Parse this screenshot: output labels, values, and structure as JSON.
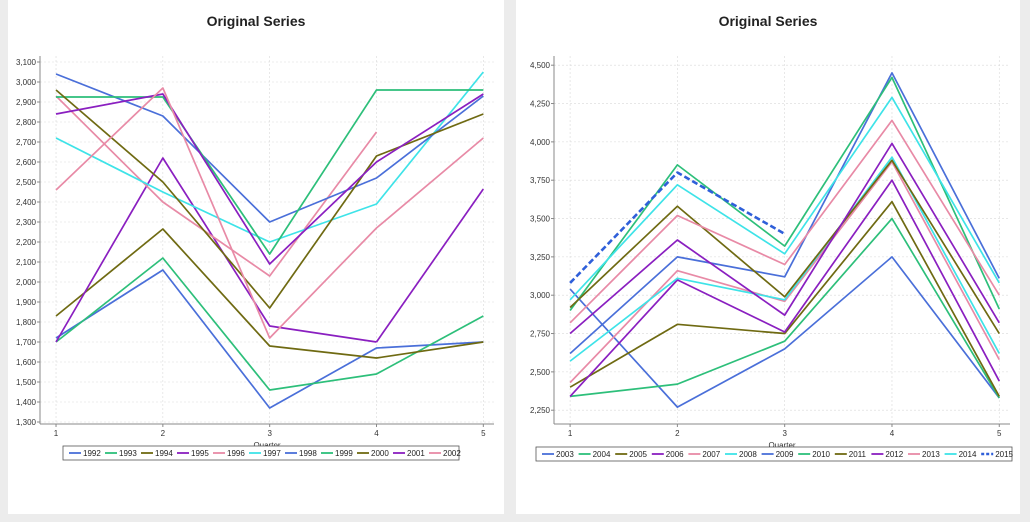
{
  "chart_data": [
    {
      "type": "line",
      "title": "Original Series",
      "xlabel": "Quarter",
      "ylabel": "",
      "x": [
        1,
        2,
        3,
        4,
        5
      ],
      "xlim": [
        0.85,
        5.1
      ],
      "ylim": [
        1290,
        3130
      ],
      "yticks": [
        1300,
        1400,
        1500,
        1600,
        1700,
        1800,
        1900,
        2000,
        2100,
        2200,
        2300,
        2400,
        2500,
        2600,
        2700,
        2800,
        2900,
        3000,
        3100
      ],
      "grid": true,
      "legend": "bottom",
      "series": [
        {
          "name": "1992",
          "color": "#4a6fd9",
          "values": [
            1720,
            2060,
            1370,
            1670,
            1700
          ]
        },
        {
          "name": "1993",
          "color": "#2dbf7a",
          "values": [
            1700,
            2120,
            1460,
            1540,
            1830
          ]
        },
        {
          "name": "1994",
          "color": "#6f6a12",
          "values": [
            1830,
            2265,
            1680,
            1620,
            1700
          ]
        },
        {
          "name": "1995",
          "color": "#8a1fc0",
          "values": [
            1700,
            2620,
            1780,
            1700,
            null
          ]
        },
        {
          "name": "1996",
          "color": "#e88aa6",
          "values": [
            2930,
            2400,
            2030,
            2750,
            null
          ]
        },
        {
          "name": "1997",
          "color": "#3ee3e8",
          "values": [
            2720,
            2450,
            2200,
            2390,
            3050
          ]
        },
        {
          "name": "1998",
          "color": "#4a6fd9",
          "values": [
            3040,
            2830,
            2300,
            2520,
            2930
          ]
        },
        {
          "name": "1999",
          "color": "#2dbf7a",
          "values": [
            2925,
            2925,
            2140,
            2960,
            2960
          ]
        },
        {
          "name": "2000",
          "color": "#6f6a12",
          "values": [
            2960,
            2500,
            1870,
            2630,
            2840
          ]
        },
        {
          "name": "2001",
          "color": "#8a1fc0",
          "values": [
            2840,
            2940,
            2090,
            2600,
            2940
          ]
        },
        {
          "name": "2002",
          "color": "#e88aa6",
          "values": [
            2460,
            2970,
            1720,
            2270,
            2720
          ]
        }
      ],
      "extra_segments": [
        {
          "series": "1995",
          "color": "#8a1fc0",
          "x": [
            4,
            5
          ],
          "values": [
            1700,
            2465
          ]
        }
      ]
    },
    {
      "type": "line",
      "title": "Original Series",
      "xlabel": "Quarter",
      "ylabel": "",
      "x": [
        1,
        2,
        3,
        4,
        5
      ],
      "xlim": [
        0.85,
        5.1
      ],
      "ylim": [
        2160,
        4560
      ],
      "yticks": [
        2250,
        2500,
        2750,
        3000,
        3250,
        3500,
        3750,
        4000,
        4250,
        4500
      ],
      "grid": true,
      "legend": "bottom",
      "series": [
        {
          "name": "2003",
          "color": "#4a6fd9",
          "values": [
            3040,
            2270,
            2650,
            3250,
            2330
          ]
        },
        {
          "name": "2004",
          "color": "#2dbf7a",
          "values": [
            2340,
            2420,
            2700,
            3500,
            2330
          ]
        },
        {
          "name": "2005",
          "color": "#6f6a12",
          "values": [
            2400,
            2810,
            2750,
            3610,
            2340
          ]
        },
        {
          "name": "2006",
          "color": "#8a1fc0",
          "values": [
            2340,
            3100,
            2760,
            3750,
            2440
          ]
        },
        {
          "name": "2007",
          "color": "#e88aa6",
          "values": [
            2430,
            3160,
            2960,
            3870,
            2580
          ]
        },
        {
          "name": "2008",
          "color": "#3ee3e8",
          "values": [
            2570,
            3110,
            2970,
            3900,
            2620
          ]
        },
        {
          "name": "2009",
          "color": "#4a6fd9",
          "values": [
            2620,
            3250,
            3120,
            4450,
            3110
          ]
        },
        {
          "name": "2010",
          "color": "#2dbf7a",
          "values": [
            2900,
            3850,
            3320,
            4420,
            2910
          ]
        },
        {
          "name": "2011",
          "color": "#6f6a12",
          "values": [
            2920,
            3580,
            2990,
            3880,
            2750
          ]
        },
        {
          "name": "2012",
          "color": "#8a1fc0",
          "values": [
            2750,
            3360,
            2870,
            3990,
            2820
          ]
        },
        {
          "name": "2013",
          "color": "#e88aa6",
          "values": [
            2820,
            3520,
            3200,
            4140,
            3000
          ]
        },
        {
          "name": "2014",
          "color": "#3ee3e8",
          "values": [
            2970,
            3720,
            3270,
            4290,
            3080
          ]
        },
        {
          "name": "2015",
          "color": "#2f5fd9",
          "dashed": true,
          "values": [
            3080,
            3800,
            3400,
            null,
            null
          ]
        }
      ],
      "extra_segments": []
    }
  ]
}
